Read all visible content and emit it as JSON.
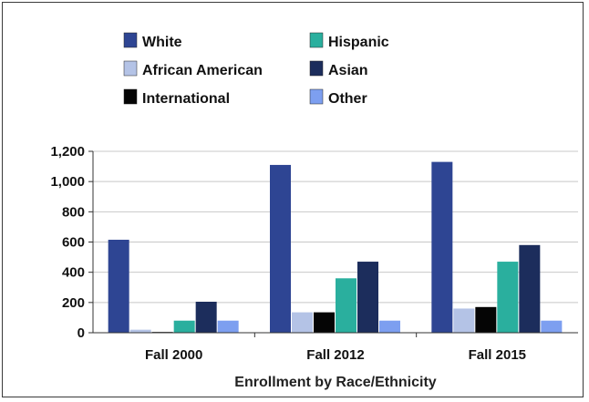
{
  "chart_data": {
    "type": "bar",
    "title": "",
    "xlabel": "Enrollment by Race/Ethnicity",
    "ylabel": "",
    "ylim": [
      0,
      1200
    ],
    "yticks": [
      "0",
      "200",
      "400",
      "600",
      "800",
      "1,000",
      "1,200"
    ],
    "ytick_values": [
      0,
      200,
      400,
      600,
      800,
      1000,
      1200
    ],
    "grid": true,
    "legend_position": "top",
    "categories": [
      "Fall 2000",
      "Fall 2012",
      "Fall 2015"
    ],
    "series": [
      {
        "name": "White",
        "color": "#2e4593",
        "values": [
          615,
          1110,
          1130
        ]
      },
      {
        "name": "African American",
        "color": "#b4c3e6",
        "values": [
          20,
          135,
          160
        ]
      },
      {
        "name": "International",
        "color": "#050505",
        "values": [
          5,
          135,
          170
        ]
      },
      {
        "name": "Hispanic",
        "color": "#2aaf9e",
        "values": [
          80,
          360,
          470
        ]
      },
      {
        "name": "Asian",
        "color": "#1c2d5c",
        "values": [
          205,
          470,
          580
        ]
      },
      {
        "name": "Other",
        "color": "#7d9ff0",
        "values": [
          80,
          80,
          80
        ]
      }
    ]
  }
}
